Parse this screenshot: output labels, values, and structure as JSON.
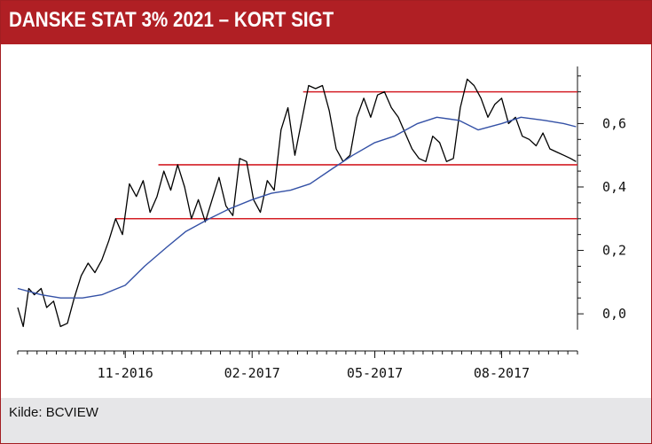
{
  "title": "DANSKE STAT 3% 2021 – KORT SIGT",
  "source": "Kilde: BCVIEW",
  "colors": {
    "header": "#b01f24",
    "price_line": "#000000",
    "ma_line": "#3451a6",
    "levels": "#d41f26",
    "footer": "#e6e6e8"
  },
  "chart_data": {
    "type": "line",
    "title": "DANSKE STAT 3% 2021 – KORT SIGT",
    "xlabel": "",
    "ylabel": "",
    "ylim": [
      -0.05,
      0.78
    ],
    "y_ticks": [
      0.0,
      0.2,
      0.4,
      0.6
    ],
    "y_tick_labels": [
      "0,0",
      "0,2",
      "0,4",
      "0,6"
    ],
    "x_tick_labels": [
      "11-2016",
      "02-2017",
      "05-2017",
      "08-2017"
    ],
    "x_tick_dates": [
      "2016-11-01",
      "2017-02-01",
      "2017-05-01",
      "2017-08-01"
    ],
    "x_range": [
      "2016-08-15",
      "2017-09-25"
    ],
    "grid": false,
    "legend": "none",
    "series": [
      {
        "kind": "price",
        "x": [
          "2016-08-15",
          "2016-08-19",
          "2016-08-23",
          "2016-08-27",
          "2016-09-01",
          "2016-09-05",
          "2016-09-10",
          "2016-09-15",
          "2016-09-20",
          "2016-09-25",
          "2016-09-30",
          "2016-10-05",
          "2016-10-10",
          "2016-10-15",
          "2016-10-20",
          "2016-10-25",
          "2016-10-30",
          "2016-11-04",
          "2016-11-09",
          "2016-11-14",
          "2016-11-19",
          "2016-11-24",
          "2016-11-29",
          "2016-12-04",
          "2016-12-09",
          "2016-12-14",
          "2016-12-19",
          "2016-12-24",
          "2016-12-29",
          "2017-01-03",
          "2017-01-08",
          "2017-01-13",
          "2017-01-18",
          "2017-01-23",
          "2017-01-28",
          "2017-02-02",
          "2017-02-07",
          "2017-02-12",
          "2017-02-17",
          "2017-02-22",
          "2017-02-27",
          "2017-03-04",
          "2017-03-09",
          "2017-03-14",
          "2017-03-19",
          "2017-03-24",
          "2017-03-29",
          "2017-04-03",
          "2017-04-08",
          "2017-04-13",
          "2017-04-18",
          "2017-04-23",
          "2017-04-28",
          "2017-05-03",
          "2017-05-08",
          "2017-05-13",
          "2017-05-18",
          "2017-05-23",
          "2017-05-28",
          "2017-06-02",
          "2017-06-07",
          "2017-06-12",
          "2017-06-17",
          "2017-06-22",
          "2017-06-27",
          "2017-07-02",
          "2017-07-07",
          "2017-07-12",
          "2017-07-17",
          "2017-07-22",
          "2017-07-27",
          "2017-08-01",
          "2017-08-06",
          "2017-08-11",
          "2017-08-16",
          "2017-08-21",
          "2017-08-26",
          "2017-08-31",
          "2017-09-05",
          "2017-09-10",
          "2017-09-15",
          "2017-09-20",
          "2017-09-24"
        ],
        "values": [
          0.02,
          -0.04,
          0.08,
          0.06,
          0.08,
          0.02,
          0.04,
          -0.04,
          -0.03,
          0.05,
          0.12,
          0.16,
          0.13,
          0.17,
          0.23,
          0.3,
          0.25,
          0.41,
          0.37,
          0.42,
          0.32,
          0.37,
          0.45,
          0.39,
          0.47,
          0.4,
          0.3,
          0.36,
          0.29,
          0.36,
          0.43,
          0.34,
          0.31,
          0.49,
          0.48,
          0.36,
          0.32,
          0.42,
          0.39,
          0.58,
          0.65,
          0.5,
          0.61,
          0.72,
          0.71,
          0.72,
          0.64,
          0.52,
          0.48,
          0.5,
          0.62,
          0.68,
          0.62,
          0.69,
          0.7,
          0.65,
          0.62,
          0.57,
          0.52,
          0.49,
          0.48,
          0.56,
          0.54,
          0.48,
          0.49,
          0.65,
          0.74,
          0.72,
          0.68,
          0.62,
          0.66,
          0.68,
          0.6,
          0.62,
          0.56,
          0.55,
          0.53,
          0.57,
          0.52,
          0.51,
          0.5,
          0.49,
          0.48
        ]
      },
      {
        "kind": "moving-average",
        "x": [
          "2016-08-15",
          "2016-09-01",
          "2016-09-15",
          "2016-10-01",
          "2016-10-15",
          "2016-11-01",
          "2016-11-15",
          "2016-12-01",
          "2016-12-15",
          "2017-01-01",
          "2017-01-15",
          "2017-02-01",
          "2017-02-15",
          "2017-03-01",
          "2017-03-15",
          "2017-04-01",
          "2017-04-15",
          "2017-05-01",
          "2017-05-15",
          "2017-06-01",
          "2017-06-15",
          "2017-07-01",
          "2017-07-15",
          "2017-08-01",
          "2017-08-15",
          "2017-09-01",
          "2017-09-15",
          "2017-09-24"
        ],
        "values": [
          0.08,
          0.06,
          0.05,
          0.05,
          0.06,
          0.09,
          0.15,
          0.21,
          0.26,
          0.3,
          0.33,
          0.36,
          0.38,
          0.39,
          0.41,
          0.46,
          0.5,
          0.54,
          0.56,
          0.6,
          0.62,
          0.61,
          0.58,
          0.6,
          0.62,
          0.61,
          0.6,
          0.59
        ]
      }
    ],
    "levels": [
      {
        "y": 0.7,
        "x_start": "2017-03-10",
        "x_end": "2017-09-25"
      },
      {
        "y": 0.47,
        "x_start": "2016-11-25",
        "x_end": "2017-09-25"
      },
      {
        "y": 0.3,
        "x_start": "2016-10-25",
        "x_end": "2017-09-25"
      }
    ]
  }
}
